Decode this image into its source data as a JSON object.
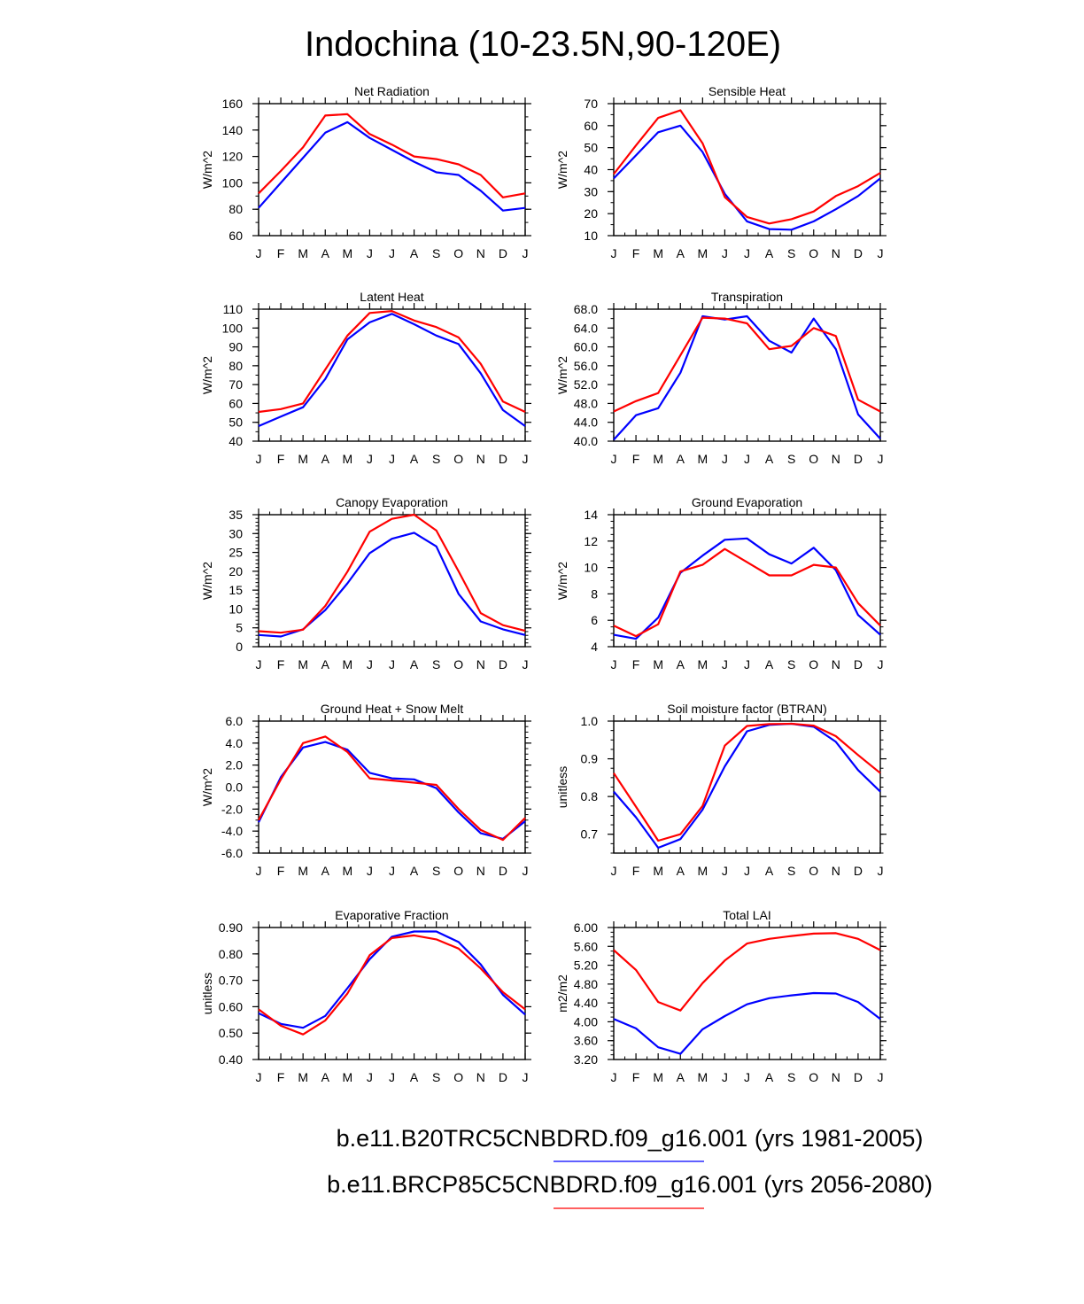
{
  "figure_title": "Indochina (10-23.5N,90-120E)",
  "colors": {
    "series_1": "#0000ff",
    "series_2": "#ff0000",
    "axis": "#000000"
  },
  "legend": [
    {
      "label": "b.e11.B20TRC5CNBDRD.f09_g16.001 (yrs 1981-2005)",
      "color": "#0000ff"
    },
    {
      "label": "b.e11.BRCP85C5CNBDRD.f09_g16.001 (yrs 2056-2080)",
      "color": "#ff0000"
    }
  ],
  "chart_data": [
    {
      "type": "line",
      "title": "Net Radiation",
      "ylabel": "W/m^2",
      "categories": [
        "J",
        "F",
        "M",
        "A",
        "M",
        "J",
        "J",
        "A",
        "S",
        "O",
        "N",
        "D",
        "J"
      ],
      "ylim": [
        60,
        160
      ],
      "yticks": [
        "60",
        "80",
        "100",
        "120",
        "140",
        "160"
      ],
      "yticks_at": [
        60,
        80,
        100,
        120,
        140,
        160
      ],
      "minor_step": 10,
      "series": [
        {
          "name": "b.e11.B20TRC5CNBDRD.f09_g16.001 (yrs 1981-2005)",
          "color": "#0000ff",
          "values": [
            81,
            100,
            119,
            138,
            146,
            134,
            125,
            116,
            108,
            106,
            94,
            79,
            81
          ]
        },
        {
          "name": "b.e11.BRCP85C5CNBDRD.f09_g16.001 (yrs 2056-2080)",
          "color": "#ff0000",
          "values": [
            92,
            109,
            127,
            151,
            152,
            137,
            129,
            120,
            118,
            114,
            106,
            89,
            92
          ]
        }
      ]
    },
    {
      "type": "line",
      "title": "Sensible Heat",
      "ylabel": "W/m^2",
      "categories": [
        "J",
        "F",
        "M",
        "A",
        "M",
        "J",
        "J",
        "A",
        "S",
        "O",
        "N",
        "D",
        "J"
      ],
      "ylim": [
        10,
        70
      ],
      "yticks": [
        "10",
        "20",
        "30",
        "40",
        "50",
        "60",
        "70"
      ],
      "yticks_at": [
        10,
        20,
        30,
        40,
        50,
        60,
        70
      ],
      "minor_step": 5,
      "series": [
        {
          "name": "b.e11.B20TRC5CNBDRD.f09_g16.001 (yrs 1981-2005)",
          "color": "#0000ff",
          "values": [
            36,
            46.5,
            57,
            60,
            48,
            29,
            16.5,
            13,
            12.7,
            16.5,
            22,
            28,
            36
          ]
        },
        {
          "name": "b.e11.BRCP85C5CNBDRD.f09_g16.001 (yrs 2056-2080)",
          "color": "#ff0000",
          "values": [
            38,
            51,
            63.5,
            67,
            52,
            27.5,
            18.5,
            15.5,
            17.5,
            21,
            28,
            32.5,
            38.5
          ]
        }
      ]
    },
    {
      "type": "line",
      "title": "Latent Heat",
      "ylabel": "W/m^2",
      "categories": [
        "J",
        "F",
        "M",
        "A",
        "M",
        "J",
        "J",
        "A",
        "S",
        "O",
        "N",
        "D",
        "J"
      ],
      "ylim": [
        40,
        110
      ],
      "yticks": [
        "40",
        "50",
        "60",
        "70",
        "80",
        "90",
        "100",
        "110"
      ],
      "yticks_at": [
        40,
        50,
        60,
        70,
        80,
        90,
        100,
        110
      ],
      "minor_step": 5,
      "series": [
        {
          "name": "b.e11.B20TRC5CNBDRD.f09_g16.001 (yrs 1981-2005)",
          "color": "#0000ff",
          "values": [
            48,
            53,
            58,
            73,
            94,
            103,
            107.5,
            102,
            96,
            91.5,
            76,
            56.5,
            48
          ]
        },
        {
          "name": "b.e11.BRCP85C5CNBDRD.f09_g16.001 (yrs 2056-2080)",
          "color": "#ff0000",
          "values": [
            55.5,
            57,
            60,
            78,
            96,
            108,
            109,
            104,
            100.5,
            95,
            81,
            61,
            55.5
          ]
        }
      ]
    },
    {
      "type": "line",
      "title": "Transpiration",
      "ylabel": "W/m^2",
      "categories": [
        "J",
        "F",
        "M",
        "A",
        "M",
        "J",
        "J",
        "A",
        "S",
        "O",
        "N",
        "D",
        "J"
      ],
      "ylim": [
        40,
        68
      ],
      "yticks": [
        "40.0",
        "44.0",
        "48.0",
        "52.0",
        "56.0",
        "60.0",
        "64.0",
        "68.0"
      ],
      "yticks_at": [
        40,
        44,
        48,
        52,
        56,
        60,
        64,
        68
      ],
      "minor_step": 2,
      "series": [
        {
          "name": "b.e11.B20TRC5CNBDRD.f09_g16.001 (yrs 1981-2005)",
          "color": "#0000ff",
          "values": [
            40.3,
            45.5,
            47,
            54.5,
            66.5,
            65.8,
            66.5,
            61.3,
            58.8,
            66,
            59.5,
            45.7,
            40.5
          ]
        },
        {
          "name": "b.e11.BRCP85C5CNBDRD.f09_g16.001 (yrs 2056-2080)",
          "color": "#ff0000",
          "values": [
            46.3,
            48.5,
            50.2,
            58.2,
            66.2,
            66,
            65,
            59.5,
            60.2,
            64,
            62.3,
            48.8,
            46.3
          ]
        }
      ]
    },
    {
      "type": "line",
      "title": "Canopy Evaporation",
      "ylabel": "W/m^2",
      "categories": [
        "J",
        "F",
        "M",
        "A",
        "M",
        "J",
        "J",
        "A",
        "S",
        "O",
        "N",
        "D",
        "J"
      ],
      "ylim": [
        0,
        35
      ],
      "yticks": [
        "0",
        "5",
        "10",
        "15",
        "20",
        "25",
        "30",
        "35"
      ],
      "yticks_at": [
        0,
        5,
        10,
        15,
        20,
        25,
        30,
        35
      ],
      "minor_step": 1,
      "series": [
        {
          "name": "b.e11.B20TRC5CNBDRD.f09_g16.001 (yrs 1981-2005)",
          "color": "#0000ff",
          "values": [
            3.1,
            2.7,
            4.6,
            9.7,
            16.8,
            24.8,
            28.6,
            30.2,
            26.6,
            14,
            6.7,
            4.6,
            3.1
          ]
        },
        {
          "name": "b.e11.BRCP85C5CNBDRD.f09_g16.001 (yrs 2056-2080)",
          "color": "#ff0000",
          "values": [
            4.1,
            3.7,
            4.5,
            10.8,
            19.9,
            30.5,
            33.9,
            35,
            30.8,
            20,
            8.9,
            5.7,
            4.2
          ]
        }
      ]
    },
    {
      "type": "line",
      "title": "Ground Evaporation",
      "ylabel": "W/m^2",
      "categories": [
        "J",
        "F",
        "M",
        "A",
        "M",
        "J",
        "J",
        "A",
        "S",
        "O",
        "N",
        "D",
        "J"
      ],
      "ylim": [
        4,
        14
      ],
      "yticks": [
        "4",
        "6",
        "8",
        "10",
        "12",
        "14"
      ],
      "yticks_at": [
        4,
        6,
        8,
        10,
        12,
        14
      ],
      "minor_step": 0.5,
      "series": [
        {
          "name": "b.e11.B20TRC5CNBDRD.f09_g16.001 (yrs 1981-2005)",
          "color": "#0000ff",
          "values": [
            4.9,
            4.6,
            6.2,
            9.6,
            10.9,
            12.1,
            12.2,
            11,
            10.3,
            11.5,
            9.8,
            6.4,
            4.9
          ]
        },
        {
          "name": "b.e11.BRCP85C5CNBDRD.f09_g16.001 (yrs 2056-2080)",
          "color": "#ff0000",
          "values": [
            5.6,
            4.8,
            5.7,
            9.7,
            10.2,
            11.4,
            10.4,
            9.4,
            9.4,
            10.2,
            10,
            7.3,
            5.6
          ]
        }
      ]
    },
    {
      "type": "line",
      "title": "Ground Heat + Snow Melt",
      "ylabel": "W/m^2",
      "categories": [
        "J",
        "F",
        "M",
        "A",
        "M",
        "J",
        "J",
        "A",
        "S",
        "O",
        "N",
        "D",
        "J"
      ],
      "ylim": [
        -6,
        6
      ],
      "yticks": [
        "-6.0",
        "-4.0",
        "-2.0",
        "0.0",
        "2.0",
        "4.0",
        "6.0"
      ],
      "yticks_at": [
        -6,
        -4,
        -2,
        0,
        2,
        4,
        6
      ],
      "minor_step": 0.5,
      "series": [
        {
          "name": "b.e11.B20TRC5CNBDRD.f09_g16.001 (yrs 1981-2005)",
          "color": "#0000ff",
          "values": [
            -3.2,
            0.9,
            3.6,
            4.1,
            3.4,
            1.3,
            0.8,
            0.7,
            -0.1,
            -2.3,
            -4.2,
            -4.7,
            -3.1
          ]
        },
        {
          "name": "b.e11.BRCP85C5CNBDRD.f09_g16.001 (yrs 2056-2080)",
          "color": "#ff0000",
          "values": [
            -3,
            0.7,
            4,
            4.6,
            3.2,
            0.8,
            0.6,
            0.4,
            0.2,
            -2,
            -3.9,
            -4.8,
            -2.8
          ]
        }
      ]
    },
    {
      "type": "line",
      "title": "Soil moisture factor (BTRAN)",
      "ylabel": "unitless",
      "categories": [
        "J",
        "F",
        "M",
        "A",
        "M",
        "J",
        "J",
        "A",
        "S",
        "O",
        "N",
        "D",
        "J"
      ],
      "ylim": [
        0.65,
        1.0
      ],
      "yticks": [
        "0.7",
        "0.8",
        "0.9",
        "1.0"
      ],
      "yticks_at": [
        0.7,
        0.8,
        0.9,
        1.0
      ],
      "minor_step": 0.025,
      "series": [
        {
          "name": "b.e11.B20TRC5CNBDRD.f09_g16.001 (yrs 1981-2005)",
          "color": "#0000ff",
          "values": [
            0.813,
            0.745,
            0.664,
            0.687,
            0.765,
            0.88,
            0.973,
            0.99,
            0.993,
            0.985,
            0.945,
            0.87,
            0.813
          ]
        },
        {
          "name": "b.e11.BRCP85C5CNBDRD.f09_g16.001 (yrs 2056-2080)",
          "color": "#ff0000",
          "values": [
            0.862,
            0.773,
            0.683,
            0.7,
            0.775,
            0.935,
            0.987,
            0.992,
            0.993,
            0.988,
            0.96,
            0.91,
            0.862
          ]
        }
      ]
    },
    {
      "type": "line",
      "title": "Evaporative Fraction",
      "ylabel": "unitless",
      "categories": [
        "J",
        "F",
        "M",
        "A",
        "M",
        "J",
        "J",
        "A",
        "S",
        "O",
        "N",
        "D",
        "J"
      ],
      "ylim": [
        0.4,
        0.9
      ],
      "yticks": [
        "0.40",
        "0.50",
        "0.60",
        "0.70",
        "0.80",
        "0.90"
      ],
      "yticks_at": [
        0.4,
        0.5,
        0.6,
        0.7,
        0.8,
        0.9
      ],
      "minor_step": 0.05,
      "series": [
        {
          "name": "b.e11.B20TRC5CNBDRD.f09_g16.001 (yrs 1981-2005)",
          "color": "#0000ff",
          "values": [
            0.575,
            0.535,
            0.52,
            0.565,
            0.67,
            0.78,
            0.865,
            0.885,
            0.885,
            0.845,
            0.76,
            0.645,
            0.57
          ]
        },
        {
          "name": "b.e11.BRCP85C5CNBDRD.f09_g16.001 (yrs 2056-2080)",
          "color": "#ff0000",
          "values": [
            0.59,
            0.528,
            0.495,
            0.548,
            0.65,
            0.795,
            0.86,
            0.87,
            0.855,
            0.82,
            0.745,
            0.655,
            0.59
          ]
        }
      ]
    },
    {
      "type": "line",
      "title": "Total LAI",
      "ylabel": "m2/m2",
      "categories": [
        "J",
        "F",
        "M",
        "A",
        "M",
        "J",
        "J",
        "A",
        "S",
        "O",
        "N",
        "D",
        "J"
      ],
      "ylim": [
        3.2,
        6.0
      ],
      "yticks": [
        "3.20",
        "3.60",
        "4.00",
        "4.40",
        "4.80",
        "5.20",
        "5.60",
        "6.00"
      ],
      "yticks_at": [
        3.2,
        3.6,
        4.0,
        4.4,
        4.8,
        5.2,
        5.6,
        6.0
      ],
      "minor_step": 0.1,
      "series": [
        {
          "name": "b.e11.B20TRC5CNBDRD.f09_g16.001 (yrs 1981-2005)",
          "color": "#0000ff",
          "values": [
            4.06,
            3.86,
            3.46,
            3.32,
            3.84,
            4.12,
            4.37,
            4.5,
            4.56,
            4.61,
            4.6,
            4.42,
            4.06
          ]
        },
        {
          "name": "b.e11.BRCP85C5CNBDRD.f09_g16.001 (yrs 2056-2080)",
          "color": "#ff0000",
          "values": [
            5.52,
            5.1,
            4.42,
            4.24,
            4.82,
            5.3,
            5.66,
            5.76,
            5.82,
            5.87,
            5.88,
            5.76,
            5.52
          ]
        }
      ]
    }
  ]
}
